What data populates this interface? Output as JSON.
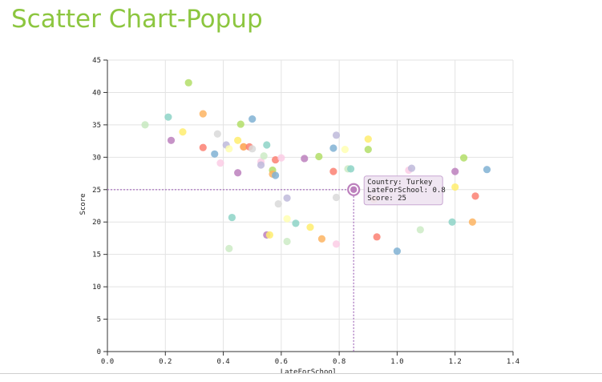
{
  "page": {
    "title": "Scatter Chart-Popup"
  },
  "chart_data": {
    "type": "scatter",
    "title": "",
    "xlabel": "LateForSchool",
    "ylabel": "Score",
    "xlim": [
      0.0,
      1.4
    ],
    "ylim": [
      0,
      45
    ],
    "xticks": [
      "0.0",
      "0.2",
      "0.4",
      "0.6",
      "0.8",
      "1.0",
      "1.2",
      "1.4"
    ],
    "yticks": [
      "0",
      "5",
      "10",
      "15",
      "20",
      "25",
      "30",
      "35",
      "40",
      "45"
    ],
    "grid": true,
    "points": [
      {
        "x": 0.13,
        "y": 35.0,
        "color": "#c7e9c0"
      },
      {
        "x": 0.21,
        "y": 36.2,
        "color": "#8dd3c7"
      },
      {
        "x": 0.22,
        "y": 32.6,
        "color": "#bc80bd"
      },
      {
        "x": 0.26,
        "y": 33.9,
        "color": "#ffed6f"
      },
      {
        "x": 0.28,
        "y": 41.5,
        "color": "#b3de69"
      },
      {
        "x": 0.33,
        "y": 36.7,
        "color": "#fdb462"
      },
      {
        "x": 0.33,
        "y": 31.5,
        "color": "#fb8072"
      },
      {
        "x": 0.37,
        "y": 30.5,
        "color": "#80b1d3"
      },
      {
        "x": 0.38,
        "y": 33.6,
        "color": "#d9d9d9"
      },
      {
        "x": 0.39,
        "y": 29.1,
        "color": "#fccde5"
      },
      {
        "x": 0.41,
        "y": 31.9,
        "color": "#bebada"
      },
      {
        "x": 0.42,
        "y": 31.3,
        "color": "#ffffb3"
      },
      {
        "x": 0.42,
        "y": 15.9,
        "color": "#ccebc5"
      },
      {
        "x": 0.43,
        "y": 20.7,
        "color": "#8dd3c7"
      },
      {
        "x": 0.45,
        "y": 32.6,
        "color": "#ffed6f"
      },
      {
        "x": 0.45,
        "y": 27.6,
        "color": "#bc80bd"
      },
      {
        "x": 0.46,
        "y": 35.1,
        "color": "#b3de69"
      },
      {
        "x": 0.47,
        "y": 31.6,
        "color": "#fb8072"
      },
      {
        "x": 0.47,
        "y": 31.6,
        "color": "#fdb462"
      },
      {
        "x": 0.49,
        "y": 31.6,
        "color": "#fb8072"
      },
      {
        "x": 0.5,
        "y": 35.9,
        "color": "#80b1d3"
      },
      {
        "x": 0.5,
        "y": 31.3,
        "color": "#d9d9d9"
      },
      {
        "x": 0.53,
        "y": 29.3,
        "color": "#fccde5"
      },
      {
        "x": 0.53,
        "y": 28.8,
        "color": "#bebada"
      },
      {
        "x": 0.54,
        "y": 30.2,
        "color": "#ccebc5"
      },
      {
        "x": 0.55,
        "y": 31.9,
        "color": "#8dd3c7"
      },
      {
        "x": 0.55,
        "y": 18.0,
        "color": "#bc80bd"
      },
      {
        "x": 0.56,
        "y": 18.0,
        "color": "#ffed6f"
      },
      {
        "x": 0.57,
        "y": 28.0,
        "color": "#b3de69"
      },
      {
        "x": 0.57,
        "y": 27.4,
        "color": "#fdb462"
      },
      {
        "x": 0.58,
        "y": 29.6,
        "color": "#fb8072"
      },
      {
        "x": 0.58,
        "y": 27.2,
        "color": "#80b1d3"
      },
      {
        "x": 0.59,
        "y": 22.8,
        "color": "#d9d9d9"
      },
      {
        "x": 0.6,
        "y": 29.9,
        "color": "#fccde5"
      },
      {
        "x": 0.62,
        "y": 23.7,
        "color": "#bebada"
      },
      {
        "x": 0.62,
        "y": 20.5,
        "color": "#ffffb3"
      },
      {
        "x": 0.62,
        "y": 17.0,
        "color": "#ccebc5"
      },
      {
        "x": 0.65,
        "y": 19.8,
        "color": "#8dd3c7"
      },
      {
        "x": 0.68,
        "y": 29.8,
        "color": "#bc80bd"
      },
      {
        "x": 0.7,
        "y": 19.2,
        "color": "#ffed6f"
      },
      {
        "x": 0.73,
        "y": 30.1,
        "color": "#b3de69"
      },
      {
        "x": 0.74,
        "y": 17.4,
        "color": "#fdb462"
      },
      {
        "x": 0.78,
        "y": 27.8,
        "color": "#fb8072"
      },
      {
        "x": 0.78,
        "y": 31.4,
        "color": "#80b1d3"
      },
      {
        "x": 0.79,
        "y": 23.8,
        "color": "#d9d9d9"
      },
      {
        "x": 0.79,
        "y": 16.6,
        "color": "#fccde5"
      },
      {
        "x": 0.79,
        "y": 33.4,
        "color": "#bebada"
      },
      {
        "x": 0.82,
        "y": 31.2,
        "color": "#ffffb3"
      },
      {
        "x": 0.83,
        "y": 28.2,
        "color": "#ccebc5"
      },
      {
        "x": 0.84,
        "y": 28.2,
        "color": "#8dd3c7"
      },
      {
        "x": 0.85,
        "y": 25.0,
        "color": "#bc80bd",
        "country": "Turkey",
        "highlight": true
      },
      {
        "x": 0.9,
        "y": 32.8,
        "color": "#ffed6f"
      },
      {
        "x": 0.9,
        "y": 31.2,
        "color": "#b3de69"
      },
      {
        "x": 0.92,
        "y": 23.5,
        "color": "#fdb462"
      },
      {
        "x": 0.93,
        "y": 17.7,
        "color": "#fb8072"
      },
      {
        "x": 1.0,
        "y": 15.5,
        "color": "#80b1d3"
      },
      {
        "x": 1.04,
        "y": 28.0,
        "color": "#fccde5"
      },
      {
        "x": 1.05,
        "y": 28.3,
        "color": "#bebada"
      },
      {
        "x": 1.08,
        "y": 18.8,
        "color": "#ccebc5"
      },
      {
        "x": 1.19,
        "y": 20.0,
        "color": "#8dd3c7"
      },
      {
        "x": 1.2,
        "y": 27.8,
        "color": "#bc80bd"
      },
      {
        "x": 1.2,
        "y": 25.4,
        "color": "#ffed6f"
      },
      {
        "x": 1.23,
        "y": 29.9,
        "color": "#b3de69"
      },
      {
        "x": 1.26,
        "y": 20.0,
        "color": "#fdb462"
      },
      {
        "x": 1.27,
        "y": 24.0,
        "color": "#fb8072"
      },
      {
        "x": 1.31,
        "y": 28.1,
        "color": "#80b1d3"
      }
    ],
    "tooltip": {
      "country_line": "Country: Turkey",
      "x_line": "LateForSchool: 0.8",
      "score_line": "Score: 25"
    }
  }
}
